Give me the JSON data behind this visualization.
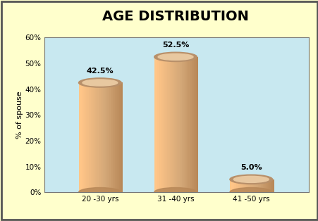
{
  "title": "AGE DISTRIBUTION",
  "categories": [
    "20 -30 yrs",
    "31 -40 yrs",
    "41 -50 yrs"
  ],
  "values": [
    42.5,
    52.5,
    5.0
  ],
  "labels": [
    "42.5%",
    "52.5%",
    "5.0%"
  ],
  "ylabel": "% of spouse",
  "ylim": [
    0,
    60
  ],
  "yticks": [
    0,
    10,
    20,
    30,
    40,
    50,
    60
  ],
  "ytick_labels": [
    "0%",
    "10%",
    "20%",
    "30%",
    "40%",
    "50%",
    "60%"
  ],
  "bg_outer": "#FFFFCC",
  "bg_inner": "#C8E8F0",
  "cylinder_body_color": "#D4A878",
  "cylinder_top_light": "#E8C8A0",
  "cylinder_top_dark": "#B8906A",
  "cylinder_shadow": "#B88858",
  "title_fontsize": 14,
  "label_fontsize": 8,
  "axis_fontsize": 7.5,
  "ylabel_fontsize": 8,
  "bar_positions": [
    0.22,
    0.52,
    0.82
  ],
  "bar_width": 0.17
}
